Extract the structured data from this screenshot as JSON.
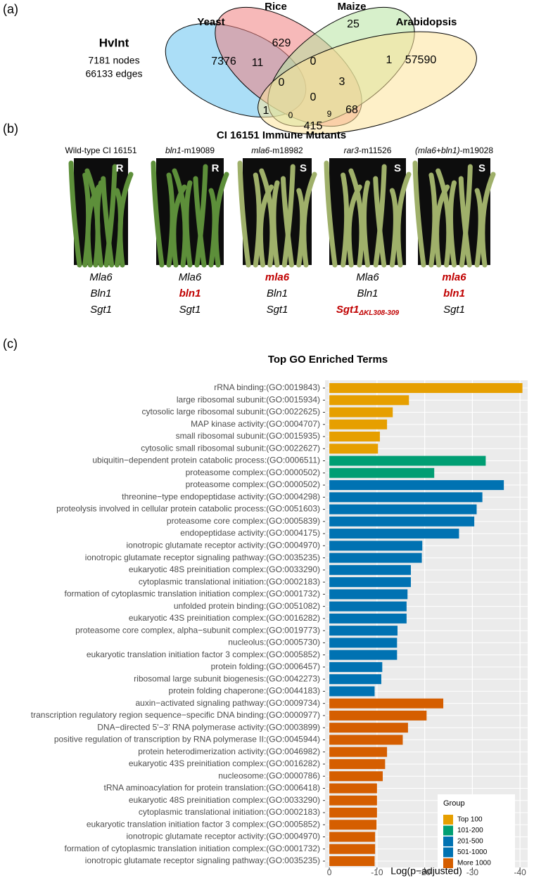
{
  "panel_a": {
    "label": "(a)",
    "network": {
      "title": "HvInt",
      "lines": [
        "7181 nodes",
        "66133 edges"
      ]
    },
    "sets": [
      "Yeast",
      "Rice",
      "Maize",
      "Arabidopsis"
    ],
    "counts": [
      7376,
      629,
      25,
      57590,
      11,
      0,
      1,
      0,
      3,
      0,
      1,
      0,
      9,
      68,
      415
    ]
  },
  "panel_b": {
    "label": "(b)",
    "title": "CI 16151 Immune Mutants",
    "lines": [
      {
        "name": [
          {
            "text": "Wild-type CI 16151"
          }
        ],
        "phenotype": "R",
        "genotype": [
          {
            "text": "Mla6"
          },
          {
            "text": "Bln1"
          },
          {
            "text": "Sgt1"
          }
        ]
      },
      {
        "name": [
          {
            "text": "bln1",
            "italic": true
          },
          {
            "text": "-m19089"
          }
        ],
        "phenotype": "R",
        "genotype": [
          {
            "text": "Mla6"
          },
          {
            "text": "bln1",
            "mutant": true
          },
          {
            "text": "Sgt1"
          }
        ]
      },
      {
        "name": [
          {
            "text": "mla6",
            "italic": true
          },
          {
            "text": "-m18982"
          }
        ],
        "phenotype": "S",
        "genotype": [
          {
            "text": "mla6",
            "mutant": true
          },
          {
            "text": "Bln1"
          },
          {
            "text": "Sgt1"
          }
        ]
      },
      {
        "name": [
          {
            "text": "rar3",
            "italic": true
          },
          {
            "text": "-m11526"
          }
        ],
        "phenotype": "S",
        "genotype": [
          {
            "text": "Mla6"
          },
          {
            "text": "Bln1"
          },
          {
            "text": "Sgt1",
            "sub": "ΔKL308-309",
            "mutant": true
          }
        ]
      },
      {
        "name": [
          {
            "text": "(mla6+bln1)",
            "italic": true
          },
          {
            "text": "-m19028"
          }
        ],
        "phenotype": "S",
        "genotype": [
          {
            "text": "mla6",
            "mutant": true
          },
          {
            "text": "bln1",
            "mutant": true
          },
          {
            "text": "Sgt1"
          }
        ]
      }
    ]
  },
  "chart_data": {
    "type": "barh",
    "panel_label": "(c)",
    "title": "Top GO Enriched Terms",
    "xlabel": "Log(p−adjusted)",
    "categories": [
      "rRNA binding:(GO:0019843)",
      "large ribosomal subunit:(GO:0015934)",
      "cytosolic large ribosomal subunit:(GO:0022625)",
      "MAP kinase activity:(GO:0004707)",
      "small ribosomal subunit:(GO:0015935)",
      "cytosolic small ribosomal subunit:(GO:0022627)",
      "ubiquitin−dependent protein catabolic process:(GO:0006511)",
      "proteasome complex:(GO:0000502)",
      "proteasome complex:(GO:0000502)",
      "threonine−type endopeptidase activity:(GO:0004298)",
      "proteolysis involved in cellular protein catabolic process:(GO:0051603)",
      "proteasome core complex:(GO:0005839)",
      "endopeptidase activity:(GO:0004175)",
      "ionotropic glutamate receptor activity:(GO:0004970)",
      "ionotropic glutamate receptor signaling pathway:(GO:0035235)",
      "eukaryotic 48S preinitiation complex:(GO:0033290)",
      "cytoplasmic translational initiation:(GO:0002183)",
      "formation of cytoplasmic translation initiation complex:(GO:0001732)",
      "unfolded protein binding:(GO:0051082)",
      "eukaryotic 43S preinitiation complex:(GO:0016282)",
      "proteasome core complex, alpha−subunit complex:(GO:0019773)",
      "nucleolus:(GO:0005730)",
      "eukaryotic translation initiation factor 3 complex:(GO:0005852)",
      "protein folding:(GO:0006457)",
      "ribosomal large subunit biogenesis:(GO:0042273)",
      "protein folding chaperone:(GO:0044183)",
      "auxin−activated signaling pathway:(GO:0009734)",
      "transcription regulatory region sequence−specific DNA binding:(GO:0000977)",
      "DNA−directed 5'−3' RNA polymerase activity:(GO:0003899)",
      "positive regulation of transcription by RNA polymerase II:(GO:0045944)",
      "protein heterodimerization activity:(GO:0046982)",
      "eukaryotic 43S preinitiation complex:(GO:0016282)",
      "nucleosome:(GO:0000786)",
      "tRNA aminoacylation for protein translation:(GO:0006418)",
      "eukaryotic 48S preinitiation complex:(GO:0033290)",
      "cytoplasmic translational initiation:(GO:0002183)",
      "eukaryotic translation initiation factor 3 complex:(GO:0005852)",
      "ionotropic glutamate receptor activity:(GO:0004970)",
      "formation of cytoplasmic translation initiation complex:(GO:0001732)",
      "ionotropic glutamate receptor signaling pathway:(GO:0035235)"
    ],
    "values": [
      -40.5,
      -16.7,
      -13.3,
      -12.1,
      -10.6,
      -10.2,
      -32.8,
      -22.0,
      -36.6,
      -32.1,
      -30.9,
      -30.4,
      -27.2,
      -19.5,
      -19.4,
      -17.1,
      -17.1,
      -16.4,
      -16.2,
      -16.2,
      -14.3,
      -14.2,
      -14.2,
      -11.1,
      -10.9,
      -9.5,
      -23.9,
      -20.4,
      -16.5,
      -15.4,
      -12.1,
      -11.7,
      -11.2,
      -10.0,
      -10.0,
      -10.0,
      -9.9,
      -9.6,
      -9.6,
      -9.5
    ],
    "groups": [
      "Top 100",
      "Top 100",
      "Top 100",
      "Top 100",
      "Top 100",
      "Top 100",
      "101-200",
      "101-200",
      "201-500",
      "201-500",
      "201-500",
      "201-500",
      "201-500",
      "201-500",
      "201-500",
      "201-500",
      "201-500",
      "201-500",
      "201-500",
      "201-500",
      "201-500",
      "201-500",
      "201-500",
      "201-500",
      "201-500",
      "201-500",
      "More 1000",
      "More 1000",
      "More 1000",
      "More 1000",
      "More 1000",
      "More 1000",
      "More 1000",
      "More 1000",
      "More 1000",
      "More 1000",
      "More 1000",
      "More 1000",
      "More 1000",
      "More 1000"
    ],
    "legend": {
      "title": "Group",
      "items": [
        {
          "name": "Top 100",
          "color": "#E69F00"
        },
        {
          "name": "101-200",
          "color": "#009E73"
        },
        {
          "name": "201-500",
          "color": "#0072B2"
        },
        {
          "name": "501-1000",
          "color": "#0072B2"
        },
        {
          "name": "More 1000",
          "color": "#D55E00"
        }
      ]
    },
    "xlim": [
      0.9,
      -41.6
    ],
    "xticks": [
      0,
      -10,
      -20,
      -30,
      -40
    ],
    "grid": true
  }
}
